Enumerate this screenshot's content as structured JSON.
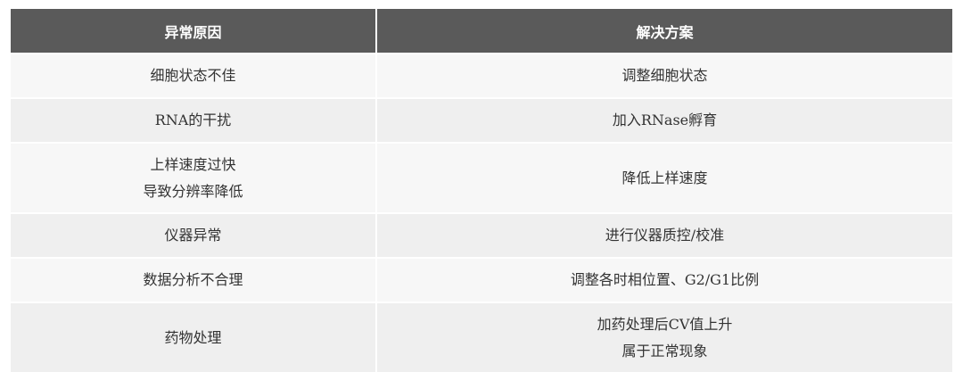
{
  "table": {
    "headers": [
      "异常原因",
      "解决方案"
    ],
    "rows": [
      {
        "cause": [
          "细胞状态不佳"
        ],
        "solution": [
          "调整细胞状态"
        ]
      },
      {
        "cause": [
          "RNA的干扰"
        ],
        "solution": [
          "加入RNase孵育"
        ]
      },
      {
        "cause": [
          "上样速度过快",
          "导致分辨率降低"
        ],
        "solution": [
          "降低上样速度"
        ]
      },
      {
        "cause": [
          "仪器异常"
        ],
        "solution": [
          "进行仪器质控/校准"
        ]
      },
      {
        "cause": [
          "数据分析不合理"
        ],
        "solution": [
          "调整各时相位置、G2/G1比例"
        ]
      },
      {
        "cause": [
          "药物处理"
        ],
        "solution": [
          "加药处理后CV值上升",
          "属于正常现象"
        ]
      }
    ],
    "colors": {
      "header_bg": "#5a5a5a",
      "row_odd": "#f7f7f7",
      "row_even": "#efefef"
    }
  }
}
